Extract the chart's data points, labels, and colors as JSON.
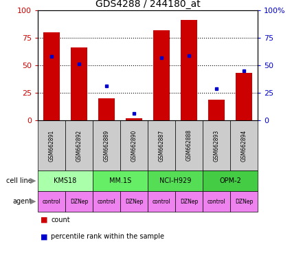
{
  "title": "GDS4288 / 244180_at",
  "samples": [
    "GSM662891",
    "GSM662892",
    "GSM662889",
    "GSM662890",
    "GSM662887",
    "GSM662888",
    "GSM662893",
    "GSM662894"
  ],
  "count_values": [
    80,
    66,
    20,
    2,
    82,
    91,
    19,
    43
  ],
  "percentile_values": [
    58,
    51,
    31,
    6,
    57,
    59,
    29,
    45
  ],
  "cell_lines": [
    {
      "label": "KMS18",
      "span": [
        0,
        2
      ],
      "color": "#aaffaa"
    },
    {
      "label": "MM.1S",
      "span": [
        2,
        4
      ],
      "color": "#66ee66"
    },
    {
      "label": "NCI-H929",
      "span": [
        4,
        6
      ],
      "color": "#55dd55"
    },
    {
      "label": "OPM-2",
      "span": [
        6,
        8
      ],
      "color": "#44cc44"
    }
  ],
  "agents": [
    "control",
    "DZNep",
    "control",
    "DZNep",
    "control",
    "DZNep",
    "control",
    "DZNep"
  ],
  "agent_color": "#ee82ee",
  "bar_color": "#cc0000",
  "dot_color": "#0000cc",
  "ylim": [
    0,
    100
  ],
  "yticks": [
    0,
    25,
    50,
    75,
    100
  ],
  "left_tick_color": "#cc0000",
  "right_tick_color": "#0000cc",
  "sample_box_color": "#cccccc",
  "legend_items": [
    {
      "color": "#cc0000",
      "label": "count"
    },
    {
      "color": "#0000cc",
      "label": "percentile rank within the sample"
    }
  ]
}
